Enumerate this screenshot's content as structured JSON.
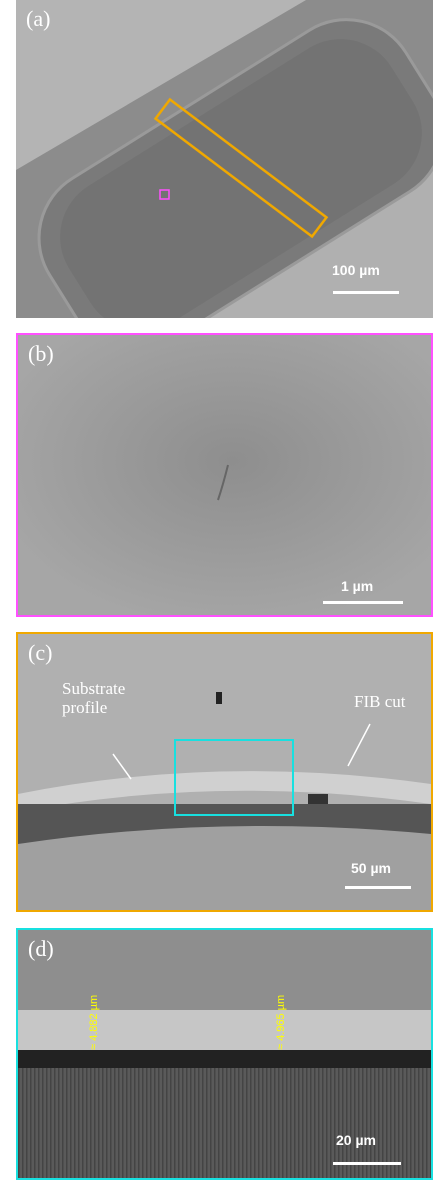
{
  "panels": [
    {
      "label": "(a)",
      "scale_bar": "100 µm"
    },
    {
      "label": "(b)",
      "scale_bar": "1 µm"
    },
    {
      "label": "(c)",
      "scale_bar": "50 µm",
      "annotations": [
        "Substrate profile",
        "FIB cut"
      ]
    },
    {
      "label": "(d)",
      "scale_bar": "20 µm",
      "annotations": [
        "≈ 4.882 µm",
        "≈ 4.965 µm"
      ]
    }
  ]
}
